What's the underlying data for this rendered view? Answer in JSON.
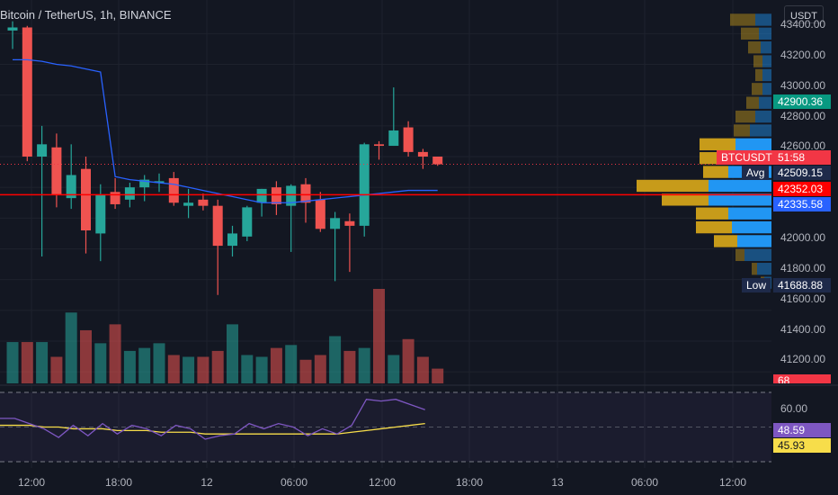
{
  "header": {
    "symbol": "Bitcoin / TetherUS, 1h, BINANCE"
  },
  "currency_button": "USDT",
  "price_axis": {
    "labels": [
      "43400.00",
      "43200.00",
      "43000.00",
      "42800.00",
      "42600.00",
      "42000.00",
      "41800.00",
      "41600.00",
      "41400.00",
      "41200.00"
    ]
  },
  "tags": {
    "high": "42900.36",
    "symbol": "BTCUSDT",
    "countdown": "51:58",
    "avg_label": "Avg",
    "avg_value": "42509.15",
    "last_price": "42352.03",
    "vwap": "42335.58",
    "low_label": "Low",
    "low_value": "41688.88",
    "volume": "68"
  },
  "rsi": {
    "level_label": "60.00",
    "rsi_value": "48.59",
    "ma_value": "45.93"
  },
  "time_axis": {
    "labels": [
      "12:00",
      "18:00",
      "12",
      "06:00",
      "12:00",
      "18:00",
      "13",
      "06:00",
      "12:00"
    ]
  },
  "colors": {
    "background": "#131722",
    "up": "#26a69a",
    "down": "#ef5350",
    "last_price_line": "#ff0000",
    "ma_line": "#2962ff",
    "rsi_line": "#7e57c2",
    "rsi_ma": "#f7dd4a",
    "profile_blue": "#2196f3",
    "profile_gold": "#c79b1a"
  },
  "chart_data": {
    "type": "candlestick",
    "candles": [
      {
        "o": 43420,
        "h": 43480,
        "l": 43300,
        "c": 43440
      },
      {
        "o": 43440,
        "h": 43450,
        "l": 42570,
        "c": 42600
      },
      {
        "o": 42600,
        "h": 42800,
        "l": 41950,
        "c": 42680
      },
      {
        "o": 42660,
        "h": 42750,
        "l": 42270,
        "c": 42350
      },
      {
        "o": 42330,
        "h": 42680,
        "l": 42260,
        "c": 42480
      },
      {
        "o": 42520,
        "h": 42600,
        "l": 41970,
        "c": 42120
      },
      {
        "o": 42100,
        "h": 42420,
        "l": 41920,
        "c": 42350
      },
      {
        "o": 42370,
        "h": 42460,
        "l": 42260,
        "c": 42290
      },
      {
        "o": 42320,
        "h": 42430,
        "l": 42270,
        "c": 42400
      },
      {
        "o": 42400,
        "h": 42480,
        "l": 42310,
        "c": 42450
      },
      {
        "o": 42430,
        "h": 42490,
        "l": 42370,
        "c": 42440
      },
      {
        "o": 42460,
        "h": 42500,
        "l": 42280,
        "c": 42300
      },
      {
        "o": 42280,
        "h": 42390,
        "l": 42200,
        "c": 42300
      },
      {
        "o": 42320,
        "h": 42360,
        "l": 42250,
        "c": 42280
      },
      {
        "o": 42280,
        "h": 42320,
        "l": 41700,
        "c": 42020
      },
      {
        "o": 42020,
        "h": 42150,
        "l": 41950,
        "c": 42100
      },
      {
        "o": 42080,
        "h": 42280,
        "l": 42050,
        "c": 42270
      },
      {
        "o": 42300,
        "h": 42390,
        "l": 42210,
        "c": 42390
      },
      {
        "o": 42400,
        "h": 42440,
        "l": 42220,
        "c": 42290
      },
      {
        "o": 42280,
        "h": 42420,
        "l": 41980,
        "c": 42410
      },
      {
        "o": 42420,
        "h": 42460,
        "l": 42170,
        "c": 42300
      },
      {
        "o": 42320,
        "h": 42370,
        "l": 42110,
        "c": 42130
      },
      {
        "o": 42130,
        "h": 42240,
        "l": 41790,
        "c": 42200
      },
      {
        "o": 42180,
        "h": 42230,
        "l": 41850,
        "c": 42150
      },
      {
        "o": 42150,
        "h": 42690,
        "l": 42080,
        "c": 42680
      },
      {
        "o": 42680,
        "h": 42700,
        "l": 42580,
        "c": 42670
      },
      {
        "o": 42670,
        "h": 43050,
        "l": 42670,
        "c": 42770
      },
      {
        "o": 42790,
        "h": 42830,
        "l": 42600,
        "c": 42630
      },
      {
        "o": 42630,
        "h": 42650,
        "l": 42520,
        "c": 42600
      },
      {
        "o": 42600,
        "h": 42600,
        "l": 42540,
        "c": 42550
      }
    ],
    "volumes": [
      70,
      70,
      70,
      45,
      120,
      90,
      68,
      100,
      55,
      60,
      68,
      48,
      45,
      45,
      55,
      100,
      48,
      45,
      60,
      65,
      40,
      48,
      80,
      55,
      60,
      160,
      48,
      75,
      45,
      25
    ],
    "ma_line": [
      43230,
      43230,
      43220,
      43200,
      43190,
      43170,
      43150,
      42470,
      42450,
      42440,
      42430,
      42420,
      42400,
      42380,
      42360,
      42340,
      42320,
      42300,
      42300,
      42300,
      42310,
      42320,
      42330,
      42340,
      42350,
      42360,
      42370,
      42380,
      42380,
      42380
    ],
    "rsi": [
      55,
      55,
      52,
      49,
      44,
      51,
      45,
      52,
      46,
      51,
      49,
      45,
      51,
      49,
      43,
      45,
      46,
      52,
      49,
      52,
      50,
      45,
      49,
      46,
      51,
      66,
      65,
      66,
      63,
      60
    ],
    "rsi_ma": [
      51,
      51,
      51,
      50,
      50,
      49,
      49,
      49,
      48,
      48,
      48,
      47,
      47,
      47,
      46,
      46,
      46,
      46,
      46,
      46,
      46,
      46,
      46,
      46,
      47,
      48,
      49,
      50,
      51,
      52
    ],
    "profile": [
      {
        "price": 43490,
        "blue": 18,
        "gold": 28
      },
      {
        "price": 43400,
        "blue": 14,
        "gold": 20
      },
      {
        "price": 43310,
        "blue": 12,
        "gold": 14
      },
      {
        "price": 43220,
        "blue": 10,
        "gold": 10
      },
      {
        "price": 43130,
        "blue": 10,
        "gold": 8
      },
      {
        "price": 43040,
        "blue": 10,
        "gold": 12
      },
      {
        "price": 42950,
        "blue": 14,
        "gold": 14
      },
      {
        "price": 42860,
        "blue": 18,
        "gold": 22
      },
      {
        "price": 42770,
        "blue": 24,
        "gold": 18
      },
      {
        "price": 42680,
        "blue": 40,
        "gold": 40
      },
      {
        "price": 42590,
        "blue": 36,
        "gold": 44
      },
      {
        "price": 42500,
        "blue": 48,
        "gold": 28
      },
      {
        "price": 42410,
        "blue": 70,
        "gold": 80
      },
      {
        "price": 42320,
        "blue": 70,
        "gold": 52
      },
      {
        "price": 42230,
        "blue": 48,
        "gold": 36
      },
      {
        "price": 42140,
        "blue": 44,
        "gold": 40
      },
      {
        "price": 42050,
        "blue": 38,
        "gold": 26
      },
      {
        "price": 41960,
        "blue": 30,
        "gold": 10
      },
      {
        "price": 41870,
        "blue": 16,
        "gold": 6
      },
      {
        "price": 41780,
        "blue": 8,
        "gold": 4
      }
    ],
    "y_range": [
      41160,
      43560
    ],
    "rsi_range": [
      30,
      70
    ]
  }
}
